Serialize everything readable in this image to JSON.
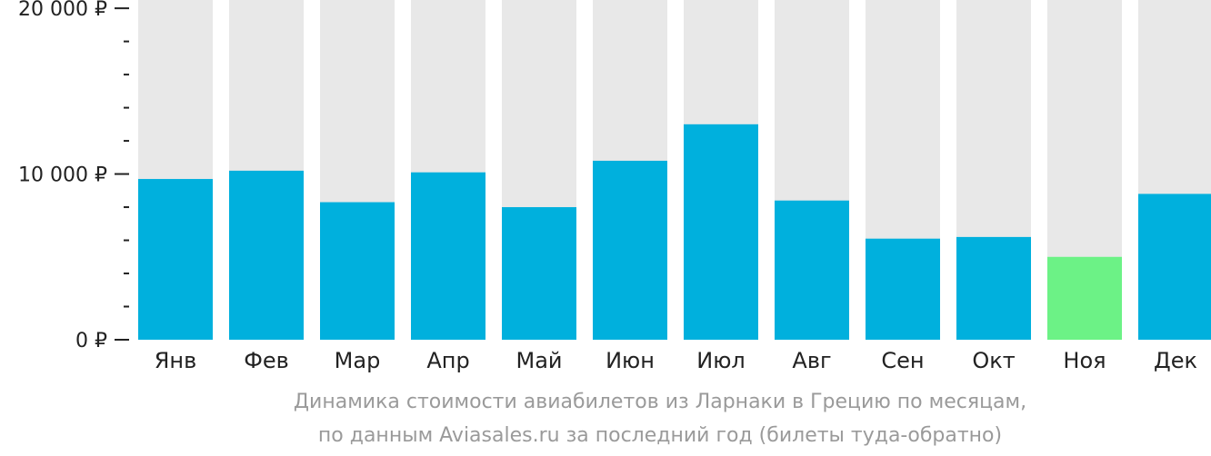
{
  "chart_data": {
    "type": "bar",
    "categories": [
      "Янв",
      "Фев",
      "Мар",
      "Апр",
      "Май",
      "Июн",
      "Июл",
      "Авг",
      "Сен",
      "Окт",
      "Ноя",
      "Дек"
    ],
    "values": [
      9700,
      10200,
      8300,
      10100,
      8000,
      10800,
      13000,
      8400,
      6100,
      6200,
      5000,
      8800
    ],
    "ylim": [
      0,
      20500
    ],
    "y_ticks": [
      {
        "value": 0,
        "label": "0 ₽"
      },
      {
        "value": 10000,
        "label": "10 000 ₽"
      },
      {
        "value": 20000,
        "label": "20 000 ₽"
      }
    ],
    "minor_tick_step": 2000,
    "highlight_category": "Ноя",
    "colors": {
      "bar": "#00b0dd",
      "highlight": "#6cf286",
      "background_bar": "#e8e8e8",
      "axis": "#222222"
    },
    "caption": [
      "Динамика стоимости авиабилетов из Ларнаки в Грецию по месяцам,",
      "по данным Aviasales.ru за последний год (билеты туда-обратно)"
    ]
  }
}
